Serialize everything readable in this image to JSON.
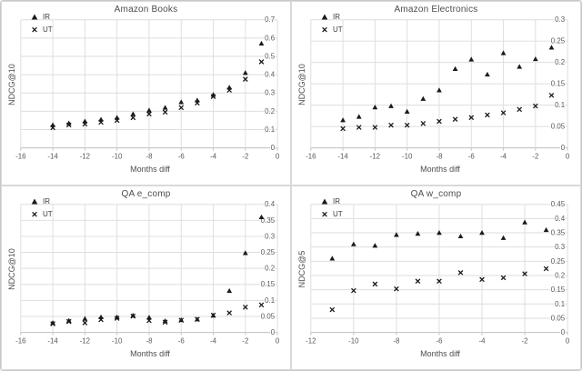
{
  "theme": {
    "background": "#ffffff",
    "panel_border": "#d9d9d9",
    "grid_color": "#dedede",
    "axis_color": "#bfbfbf",
    "tick_label_color": "#595959",
    "title_color": "#4d4d4d",
    "marker_color": "#1a1a1a"
  },
  "chart_data": [
    {
      "type": "scatter",
      "title": "Amazon Books",
      "xlabel": "Months diff",
      "ylabel": "NDCG@10",
      "legend_position": "top-left",
      "grid": true,
      "xlim": [
        -16,
        0
      ],
      "xtick_step": 2,
      "ylim": [
        0,
        0.7
      ],
      "ytick_step": 0.1,
      "x": [
        -14,
        -13,
        -12,
        -11,
        -10,
        -9,
        -8,
        -7,
        -6,
        -5,
        -4,
        -3,
        -2,
        -1
      ],
      "series": [
        {
          "name": "IR",
          "marker": "triangle",
          "values": [
            0.125,
            0.135,
            0.145,
            0.155,
            0.165,
            0.185,
            0.205,
            0.22,
            0.25,
            0.26,
            0.29,
            0.33,
            0.41,
            0.57
          ]
        },
        {
          "name": "UT",
          "marker": "x",
          "values": [
            0.11,
            0.125,
            0.13,
            0.14,
            0.15,
            0.165,
            0.185,
            0.195,
            0.22,
            0.245,
            0.28,
            0.315,
            0.375,
            0.47
          ]
        }
      ]
    },
    {
      "type": "scatter",
      "title": "Amazon Electronics",
      "xlabel": "Months diff",
      "ylabel": "NDCG@10",
      "legend_position": "top-left",
      "grid": true,
      "xlim": [
        -16,
        0
      ],
      "xtick_step": 2,
      "ylim": [
        0,
        0.3
      ],
      "ytick_step": 0.05,
      "x": [
        -14,
        -13,
        -12,
        -11,
        -10,
        -9,
        -8,
        -7,
        -6,
        -5,
        -4,
        -3,
        -2,
        -1
      ],
      "series": [
        {
          "name": "IR",
          "marker": "triangle",
          "values": [
            0.065,
            0.073,
            0.095,
            0.098,
            0.085,
            0.115,
            0.135,
            0.185,
            0.207,
            0.172,
            0.222,
            0.19,
            0.208,
            0.235
          ]
        },
        {
          "name": "UT",
          "marker": "x",
          "values": [
            0.045,
            0.048,
            0.048,
            0.053,
            0.053,
            0.057,
            0.062,
            0.067,
            0.071,
            0.077,
            0.082,
            0.09,
            0.098,
            0.123
          ]
        }
      ]
    },
    {
      "type": "scatter",
      "title": "QA e_comp",
      "xlabel": "Months diff",
      "ylabel": "NDCG@10",
      "legend_position": "top-left",
      "grid": true,
      "xlim": [
        -16,
        0
      ],
      "xtick_step": 2,
      "ylim": [
        0,
        0.4
      ],
      "ytick_step": 0.05,
      "x": [
        -14,
        -13,
        -12,
        -11,
        -10,
        -9,
        -8,
        -7,
        -6,
        -5,
        -4,
        -3,
        -2,
        -1
      ],
      "series": [
        {
          "name": "IR",
          "marker": "triangle",
          "values": [
            0.03,
            0.037,
            0.043,
            0.048,
            0.048,
            0.053,
            0.047,
            0.036,
            0.039,
            0.041,
            0.053,
            0.13,
            0.248,
            0.36
          ]
        },
        {
          "name": "UT",
          "marker": "x",
          "values": [
            0.027,
            0.034,
            0.03,
            0.04,
            0.044,
            0.051,
            0.037,
            0.032,
            0.038,
            0.041,
            0.054,
            0.061,
            0.079,
            0.086
          ]
        }
      ]
    },
    {
      "type": "scatter",
      "title": "QA w_comp",
      "xlabel": "Months diff",
      "ylabel": "NDCG@5",
      "legend_position": "top-left",
      "grid": true,
      "xlim": [
        -12,
        0
      ],
      "xtick_step": 2,
      "ylim": [
        0,
        0.45
      ],
      "ytick_step": 0.05,
      "x": [
        -11,
        -10,
        -9,
        -8,
        -7,
        -6,
        -5,
        -4,
        -3,
        -2,
        -1
      ],
      "series": [
        {
          "name": "IR",
          "marker": "triangle",
          "values": [
            0.26,
            0.31,
            0.305,
            0.343,
            0.347,
            0.35,
            0.338,
            0.35,
            0.332,
            0.387,
            0.36
          ]
        },
        {
          "name": "UT",
          "marker": "x",
          "values": [
            0.08,
            0.147,
            0.17,
            0.153,
            0.18,
            0.18,
            0.21,
            0.186,
            0.192,
            0.206,
            0.224
          ]
        }
      ]
    }
  ]
}
